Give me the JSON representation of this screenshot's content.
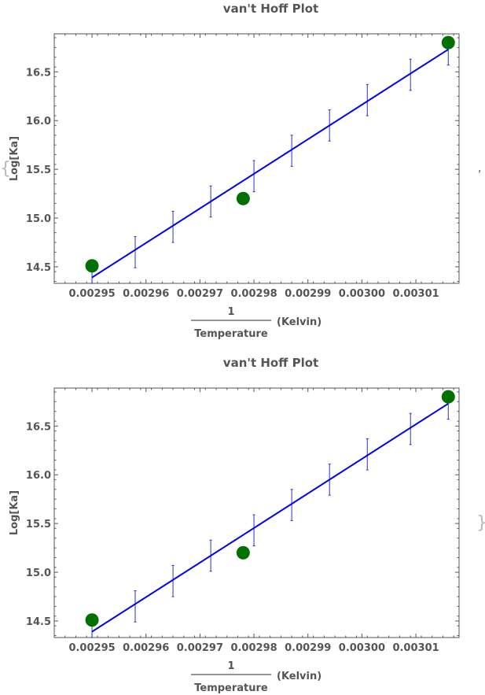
{
  "wrapper": {
    "open_brace": "{",
    "separator": ",",
    "close_brace": "}"
  },
  "colors": {
    "line": "#0000ee",
    "errorbar": "#2233cc",
    "points": "#007000",
    "text": "#555555",
    "frame": "#555555"
  },
  "chart_data": [
    {
      "type": "scatter",
      "title": "van't Hoff Plot",
      "ylabel": "Log[Ka]",
      "xlabel": {
        "numerator": "1",
        "denominator": "Temperature",
        "unit": "(Kelvin)"
      },
      "xlim": [
        0.002943,
        0.003018
      ],
      "ylim": [
        14.33,
        16.89
      ],
      "xticks": [
        {
          "v": 0.00295,
          "label": "0.00295"
        },
        {
          "v": 0.00296,
          "label": "0.00296"
        },
        {
          "v": 0.00297,
          "label": "0.00297"
        },
        {
          "v": 0.00298,
          "label": "0.00298"
        },
        {
          "v": 0.00299,
          "label": "0.00299"
        },
        {
          "v": 0.003,
          "label": "0.00300"
        },
        {
          "v": 0.00301,
          "label": "0.00301"
        }
      ],
      "yticks": [
        {
          "v": 14.5,
          "label": "14.5"
        },
        {
          "v": 15.0,
          "label": "15.0"
        },
        {
          "v": 15.5,
          "label": "15.5"
        },
        {
          "v": 16.0,
          "label": "16.0"
        },
        {
          "v": 16.5,
          "label": "16.5"
        }
      ],
      "points": [
        {
          "x": 0.00295,
          "y": 14.51
        },
        {
          "x": 0.002978,
          "y": 15.2
        },
        {
          "x": 0.003016,
          "y": 16.8
        }
      ],
      "fit_line": {
        "x": [
          0.00295,
          0.003016
        ],
        "y": [
          14.39,
          16.73
        ]
      },
      "error_bars": [
        {
          "x": 0.00295,
          "low": 14.33,
          "high": 14.45
        },
        {
          "x": 0.002958,
          "low": 14.49,
          "high": 14.81
        },
        {
          "x": 0.002965,
          "low": 14.75,
          "high": 15.07
        },
        {
          "x": 0.002972,
          "low": 15.01,
          "high": 15.33
        },
        {
          "x": 0.00298,
          "low": 15.27,
          "high": 15.59
        },
        {
          "x": 0.002987,
          "low": 15.53,
          "high": 15.85
        },
        {
          "x": 0.002994,
          "low": 15.79,
          "high": 16.11
        },
        {
          "x": 0.003001,
          "low": 16.05,
          "high": 16.37
        },
        {
          "x": 0.003009,
          "low": 16.31,
          "high": 16.63
        },
        {
          "x": 0.003016,
          "low": 16.57,
          "high": 16.85
        }
      ]
    },
    {
      "type": "scatter",
      "title": "van't Hoff Plot",
      "ylabel": "Log[Ka]",
      "xlabel": {
        "numerator": "1",
        "denominator": "Temperature",
        "unit": "(Kelvin)"
      },
      "xlim": [
        0.002943,
        0.003018
      ],
      "ylim": [
        14.33,
        16.89
      ],
      "xticks": [
        {
          "v": 0.00295,
          "label": "0.00295"
        },
        {
          "v": 0.00296,
          "label": "0.00296"
        },
        {
          "v": 0.00297,
          "label": "0.00297"
        },
        {
          "v": 0.00298,
          "label": "0.00298"
        },
        {
          "v": 0.00299,
          "label": "0.00299"
        },
        {
          "v": 0.003,
          "label": "0.00300"
        },
        {
          "v": 0.00301,
          "label": "0.00301"
        }
      ],
      "yticks": [
        {
          "v": 14.5,
          "label": "14.5"
        },
        {
          "v": 15.0,
          "label": "15.0"
        },
        {
          "v": 15.5,
          "label": "15.5"
        },
        {
          "v": 16.0,
          "label": "16.0"
        },
        {
          "v": 16.5,
          "label": "16.5"
        }
      ],
      "points": [
        {
          "x": 0.00295,
          "y": 14.51
        },
        {
          "x": 0.002978,
          "y": 15.2
        },
        {
          "x": 0.003016,
          "y": 16.8
        }
      ],
      "fit_line": {
        "x": [
          0.00295,
          0.003016
        ],
        "y": [
          14.39,
          16.73
        ]
      },
      "error_bars": [
        {
          "x": 0.00295,
          "low": 14.33,
          "high": 14.45
        },
        {
          "x": 0.002958,
          "low": 14.49,
          "high": 14.81
        },
        {
          "x": 0.002965,
          "low": 14.75,
          "high": 15.07
        },
        {
          "x": 0.002972,
          "low": 15.01,
          "high": 15.33
        },
        {
          "x": 0.00298,
          "low": 15.27,
          "high": 15.59
        },
        {
          "x": 0.002987,
          "low": 15.53,
          "high": 15.85
        },
        {
          "x": 0.002994,
          "low": 15.79,
          "high": 16.11
        },
        {
          "x": 0.003001,
          "low": 16.05,
          "high": 16.37
        },
        {
          "x": 0.003009,
          "low": 16.31,
          "high": 16.63
        },
        {
          "x": 0.003016,
          "low": 16.57,
          "high": 16.85
        }
      ]
    }
  ]
}
